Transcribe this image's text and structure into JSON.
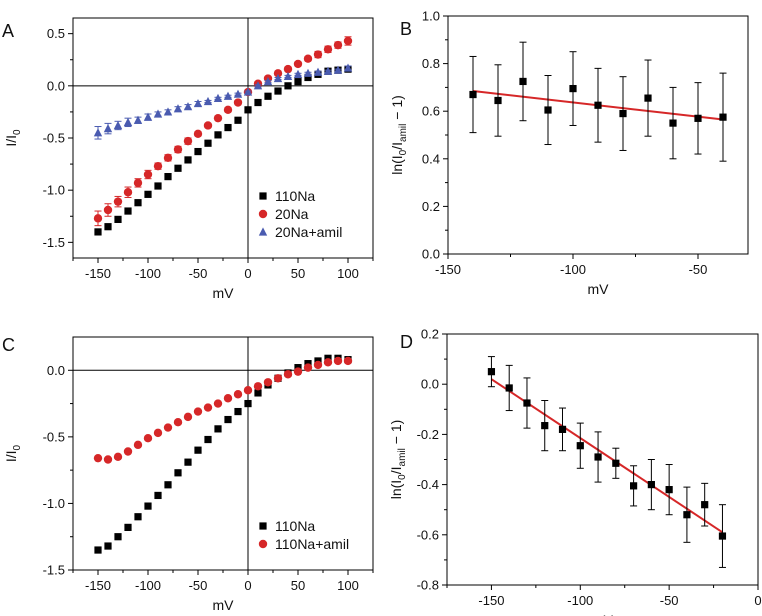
{
  "chart_data": [
    {
      "panel": "A",
      "type": "scatter",
      "xlabel": "mV",
      "ylabel": "I/I",
      "ylabel_sub": "0",
      "xlim": [
        -175,
        125
      ],
      "ylim": [
        -1.65,
        0.65
      ],
      "xticks": [
        -150,
        -100,
        -50,
        0,
        50,
        100
      ],
      "yticks": [
        -1.5,
        -1.0,
        -0.5,
        0.0,
        0.5
      ],
      "ytick_labels": [
        "-1.5",
        "-1.0",
        "-0.5",
        "0.0",
        "0.5"
      ],
      "zero_cross_lines": true,
      "legend_position": "bottom-right",
      "series": [
        {
          "name": "110Na",
          "marker": "square",
          "color": "#000000",
          "x": [
            -150,
            -140,
            -130,
            -120,
            -110,
            -100,
            -90,
            -80,
            -70,
            -60,
            -50,
            -40,
            -30,
            -20,
            -10,
            0,
            10,
            20,
            30,
            40,
            50,
            60,
            70,
            80,
            90,
            100
          ],
          "y": [
            -1.4,
            -1.35,
            -1.28,
            -1.2,
            -1.12,
            -1.04,
            -0.96,
            -0.87,
            -0.79,
            -0.71,
            -0.63,
            -0.55,
            -0.47,
            -0.4,
            -0.33,
            -0.23,
            -0.16,
            -0.1,
            -0.05,
            0.0,
            0.04,
            0.08,
            0.11,
            0.14,
            0.15,
            0.16
          ]
        },
        {
          "name": "20Na",
          "marker": "circle",
          "color": "#d62728",
          "x": [
            -150,
            -140,
            -130,
            -120,
            -110,
            -100,
            -90,
            -80,
            -70,
            -60,
            -50,
            -40,
            -30,
            -20,
            -10,
            0,
            10,
            20,
            30,
            40,
            50,
            60,
            70,
            80,
            90,
            100
          ],
          "y": [
            -1.27,
            -1.19,
            -1.11,
            -1.02,
            -0.93,
            -0.85,
            -0.77,
            -0.69,
            -0.61,
            -0.53,
            -0.46,
            -0.38,
            -0.31,
            -0.23,
            -0.16,
            -0.06,
            0.02,
            0.07,
            0.12,
            0.16,
            0.21,
            0.26,
            0.3,
            0.35,
            0.39,
            0.43
          ],
          "err": [
            0.07,
            0.06,
            0.05,
            0.05,
            0.04,
            0.04,
            0.03,
            0.03,
            0.03,
            0.03,
            0.02,
            0.02,
            0.02,
            0.02,
            0.02,
            0.02,
            0.02,
            0.02,
            0.02,
            0.02,
            0.02,
            0.02,
            0.03,
            0.03,
            0.03,
            0.04
          ]
        },
        {
          "name": "20Na+amil",
          "marker": "triangle",
          "color": "#4a5bb0",
          "x": [
            -150,
            -140,
            -130,
            -120,
            -110,
            -100,
            -90,
            -80,
            -70,
            -60,
            -50,
            -40,
            -30,
            -20,
            -10,
            0,
            10,
            20,
            30,
            40,
            50,
            60,
            70,
            80,
            90,
            100
          ],
          "y": [
            -0.45,
            -0.41,
            -0.38,
            -0.35,
            -0.33,
            -0.3,
            -0.27,
            -0.25,
            -0.22,
            -0.2,
            -0.17,
            -0.15,
            -0.12,
            -0.1,
            -0.08,
            -0.06,
            0.0,
            0.04,
            0.07,
            0.09,
            0.11,
            0.12,
            0.13,
            0.14,
            0.15,
            0.17
          ],
          "err": [
            0.06,
            0.05,
            0.04,
            0.04,
            0.03,
            0.03,
            0.02,
            0.02,
            0.02,
            0.02,
            0.02,
            0.01,
            0.01,
            0.01,
            0.01,
            0.01,
            0.01,
            0.01,
            0.01,
            0.01,
            0.01,
            0.01,
            0.01,
            0.01,
            0.01,
            0.02
          ]
        }
      ]
    },
    {
      "panel": "B",
      "type": "scatter",
      "xlabel": "mV",
      "ylabel_main": "ln(I",
      "ylabel_sub1": "0",
      "ylabel_mid": "/I",
      "ylabel_sub2": "amil",
      "ylabel_end": " − 1)",
      "xlim": [
        -150,
        -30
      ],
      "ylim": [
        0.0,
        1.0
      ],
      "xticks": [
        -150,
        -100,
        -50
      ],
      "yticks": [
        0.0,
        0.2,
        0.4,
        0.6,
        0.8,
        1.0
      ],
      "ytick_labels": [
        "0.0",
        "0.2",
        "0.4",
        "0.6",
        "0.8",
        "1.0"
      ],
      "series": [
        {
          "marker": "square",
          "color": "#000000",
          "x": [
            -140,
            -130,
            -120,
            -110,
            -100,
            -90,
            -80,
            -70,
            -60,
            -50,
            -40
          ],
          "y": [
            0.67,
            0.645,
            0.725,
            0.605,
            0.695,
            0.625,
            0.59,
            0.655,
            0.55,
            0.57,
            0.575
          ],
          "err": [
            0.16,
            0.15,
            0.165,
            0.145,
            0.155,
            0.155,
            0.155,
            0.16,
            0.15,
            0.15,
            0.185
          ]
        }
      ],
      "fit_line": {
        "color": "#d62728",
        "x": [
          -140,
          -40
        ],
        "y": [
          0.685,
          0.565
        ]
      }
    },
    {
      "panel": "C",
      "type": "scatter",
      "xlabel": "mV",
      "ylabel": "I/I",
      "ylabel_sub": "0",
      "xlim": [
        -175,
        125
      ],
      "ylim": [
        -1.5,
        0.25
      ],
      "xticks": [
        -150,
        -100,
        -50,
        0,
        50,
        100
      ],
      "yticks": [
        -1.5,
        -1.0,
        -0.5,
        0.0
      ],
      "ytick_labels": [
        "-1.5",
        "-1.0",
        "-0.5",
        "0.0"
      ],
      "zero_cross_lines": true,
      "legend_position": "bottom-right",
      "series": [
        {
          "name": "110Na",
          "marker": "square",
          "color": "#000000",
          "x": [
            -150,
            -140,
            -130,
            -120,
            -110,
            -100,
            -90,
            -80,
            -70,
            -60,
            -50,
            -40,
            -30,
            -20,
            -10,
            0,
            10,
            20,
            30,
            40,
            50,
            60,
            70,
            80,
            90,
            100
          ],
          "y": [
            -1.35,
            -1.32,
            -1.25,
            -1.18,
            -1.1,
            -1.02,
            -0.94,
            -0.86,
            -0.77,
            -0.69,
            -0.6,
            -0.52,
            -0.44,
            -0.37,
            -0.31,
            -0.25,
            -0.17,
            -0.11,
            -0.06,
            -0.02,
            0.02,
            0.05,
            0.07,
            0.09,
            0.09,
            0.08
          ]
        },
        {
          "name": "110Na+amil",
          "marker": "circle",
          "color": "#d62728",
          "x": [
            -150,
            -140,
            -130,
            -120,
            -110,
            -100,
            -90,
            -80,
            -70,
            -60,
            -50,
            -40,
            -30,
            -20,
            -10,
            0,
            10,
            20,
            30,
            40,
            50,
            60,
            70,
            80,
            90,
            100
          ],
          "y": [
            -0.66,
            -0.67,
            -0.65,
            -0.61,
            -0.56,
            -0.51,
            -0.47,
            -0.43,
            -0.39,
            -0.35,
            -0.31,
            -0.28,
            -0.25,
            -0.21,
            -0.18,
            -0.15,
            -0.12,
            -0.09,
            -0.06,
            -0.03,
            -0.01,
            0.02,
            0.04,
            0.06,
            0.07,
            0.07
          ]
        }
      ]
    },
    {
      "panel": "D",
      "type": "scatter",
      "xlabel": "mV",
      "ylabel_main": "ln(I",
      "ylabel_sub1": "0",
      "ylabel_mid": "/I",
      "ylabel_sub2": "amil",
      "ylabel_end": " − 1)",
      "xlim": [
        -175,
        0
      ],
      "ylim": [
        -0.8,
        0.2
      ],
      "xticks": [
        -150,
        -100,
        -50,
        0
      ],
      "yticks": [
        -0.8,
        -0.6,
        -0.4,
        -0.2,
        0.0,
        0.2
      ],
      "ytick_labels": [
        "-0.8",
        "-0.6",
        "-0.4",
        "-0.2",
        "0.0",
        "0.2"
      ],
      "series": [
        {
          "marker": "square",
          "color": "#000000",
          "x": [
            -150,
            -140,
            -130,
            -120,
            -110,
            -100,
            -90,
            -80,
            -70,
            -60,
            -50,
            -40,
            -30,
            -20
          ],
          "y": [
            0.05,
            -0.015,
            -0.075,
            -0.165,
            -0.18,
            -0.245,
            -0.29,
            -0.315,
            -0.405,
            -0.4,
            -0.42,
            -0.52,
            -0.48,
            -0.605
          ],
          "err": [
            0.06,
            0.09,
            0.1,
            0.1,
            0.085,
            0.09,
            0.1,
            0.06,
            0.08,
            0.1,
            0.1,
            0.11,
            0.085,
            0.125
          ]
        }
      ],
      "fit_line": {
        "color": "#d62728",
        "x": [
          -150,
          -20
        ],
        "y": [
          0.02,
          -0.59
        ]
      }
    }
  ]
}
